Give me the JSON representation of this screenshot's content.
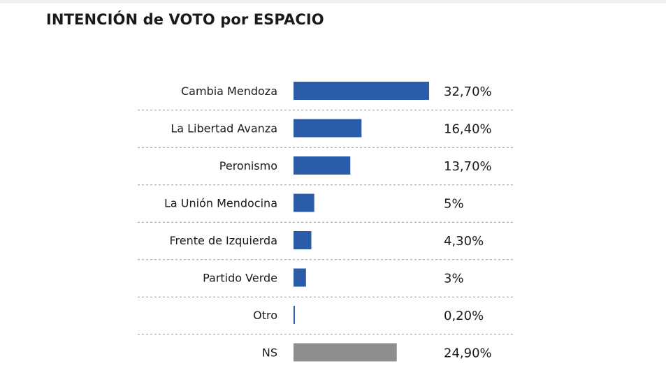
{
  "chart_data": {
    "type": "bar",
    "orientation": "horizontal",
    "title": "INTENCIÓN de VOTO por ESPACIO",
    "categories": [
      "Cambia Mendoza",
      "La Libertad Avanza",
      "Peronismo",
      "La Unión Mendocina",
      "Frente de Izquierda",
      "Partido Verde",
      "Otro",
      "NS"
    ],
    "values": [
      32.7,
      16.4,
      13.7,
      5,
      4.3,
      3,
      0.2,
      24.9
    ],
    "value_labels": [
      "32,70%",
      "16,40%",
      "13,70%",
      "5%",
      "4,30%",
      "3%",
      "0,20%",
      "24,90%"
    ],
    "colors": [
      "#2a5ca8",
      "#2a5ca8",
      "#2a5ca8",
      "#2a5ca8",
      "#2a5ca8",
      "#2a5ca8",
      "#2a5ca8",
      "#8e8e8e"
    ],
    "xlabel": "",
    "ylabel": "",
    "xlim": [
      0,
      32.7
    ],
    "grid": false,
    "legend": "none"
  }
}
